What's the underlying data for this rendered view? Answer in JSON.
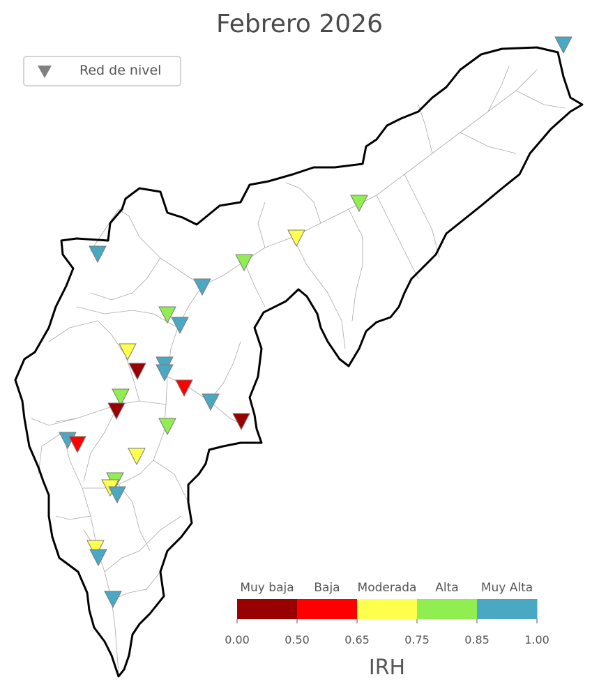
{
  "title": "Febrero 2026",
  "legend": {
    "label": "Red de nivel",
    "symbol": "triangle-down-icon",
    "symbol_color": "#808080"
  },
  "colorbar": {
    "title": "IRH",
    "classes": [
      {
        "label": "Muy baja",
        "color": "#990000",
        "min": 0.0,
        "max": 0.5
      },
      {
        "label": "Baja",
        "color": "#ff0000",
        "min": 0.5,
        "max": 0.65
      },
      {
        "label": "Moderada",
        "color": "#ffff4d",
        "min": 0.65,
        "max": 0.75
      },
      {
        "label": "Alta",
        "color": "#90ee50",
        "min": 0.75,
        "max": 0.85
      },
      {
        "label": "Muy Alta",
        "color": "#4aa8c2",
        "min": 0.85,
        "max": 1.0
      }
    ],
    "ticks": [
      "0.00",
      "0.50",
      "0.65",
      "0.75",
      "0.85",
      "1.00"
    ]
  },
  "stations": [
    {
      "class": "Muy Alta"
    },
    {
      "class": "Alta"
    },
    {
      "class": "Moderada"
    },
    {
      "class": "Alta"
    },
    {
      "class": "Muy Alta"
    },
    {
      "class": "Muy Alta"
    },
    {
      "class": "Alta"
    },
    {
      "class": "Muy Alta"
    },
    {
      "class": "Moderada"
    },
    {
      "class": "Muy baja"
    },
    {
      "class": "Muy Alta"
    },
    {
      "class": "Muy Alta"
    },
    {
      "class": "Baja"
    },
    {
      "class": "Alta"
    },
    {
      "class": "Muy baja"
    },
    {
      "class": "Muy Alta"
    },
    {
      "class": "Muy baja"
    },
    {
      "class": "Alta"
    },
    {
      "class": "Muy Alta"
    },
    {
      "class": "Baja"
    },
    {
      "class": "Moderada"
    },
    {
      "class": "Alta"
    },
    {
      "class": "Moderada"
    },
    {
      "class": "Muy Alta"
    },
    {
      "class": "Moderada"
    },
    {
      "class": "Muy Alta"
    },
    {
      "class": "Muy Alta"
    }
  ]
}
